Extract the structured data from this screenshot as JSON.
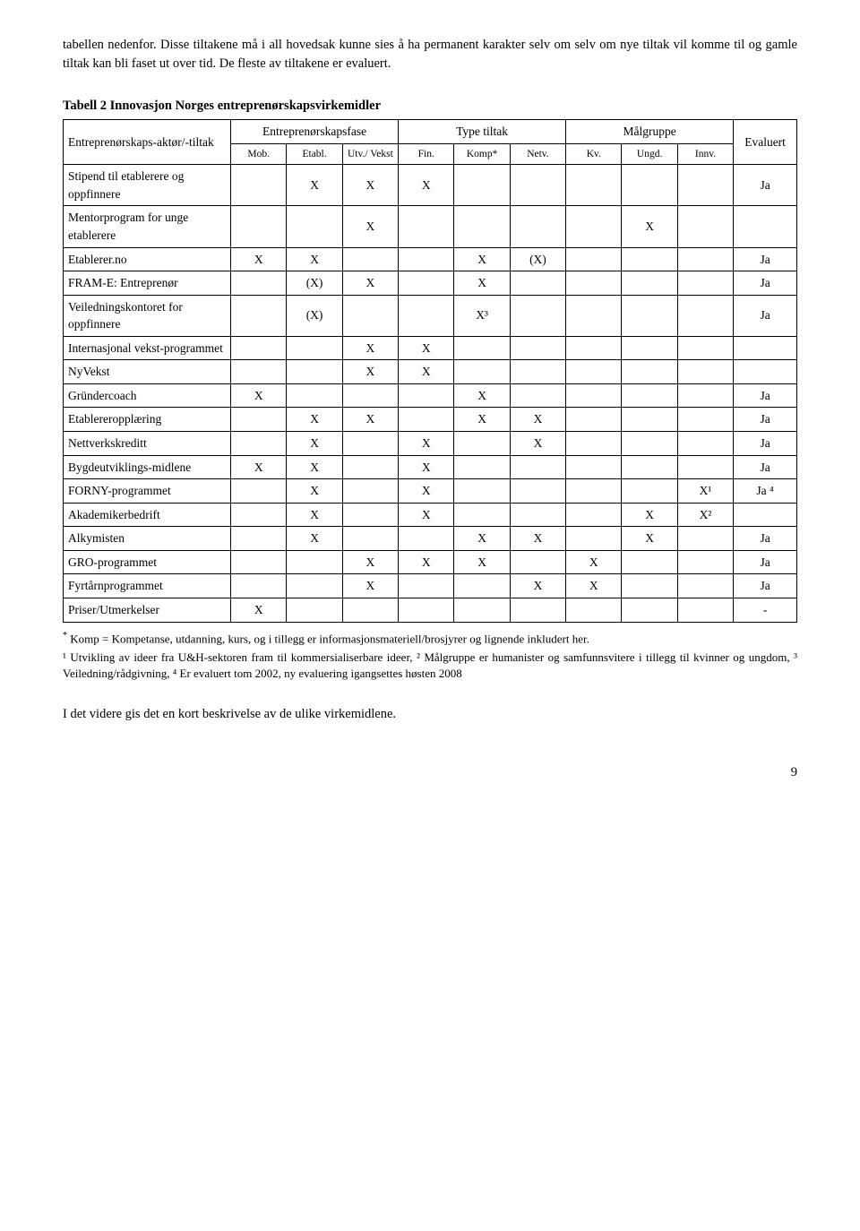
{
  "intro": "tabellen nedenfor. Disse tiltakene må i all hovedsak kunne sies å ha permanent karakter selv om selv om nye tiltak vil komme til og gamle tiltak kan bli faset ut over tid. De fleste av tiltakene er evaluert.",
  "table_title": "Tabell 2 Innovasjon Norges entreprenørskapsvirkemidler",
  "headers": {
    "main_row_label": "Entreprenørskaps-aktør/-tiltak",
    "phase": "Entreprenørskapsfase",
    "type": "Type tiltak",
    "target": "Målgruppe",
    "eval": "Evaluert",
    "sub": {
      "mob": "Mob.",
      "etabl": "Etabl.",
      "utv": "Utv./ Vekst",
      "fin": "Fin.",
      "komp": "Komp*",
      "netv": "Netv.",
      "kv": "Kv.",
      "ungd": "Ungd.",
      "innv": "Innv."
    }
  },
  "rows": [
    {
      "label": "Stipend til etablerere og oppfinnere",
      "mob": "",
      "etabl": "X",
      "utv": "X",
      "fin": "X",
      "komp": "",
      "netv": "",
      "kv": "",
      "ungd": "",
      "innv": "",
      "eval": "Ja"
    },
    {
      "label": "Mentorprogram for unge etablerere",
      "mob": "",
      "etabl": "",
      "utv": "X",
      "fin": "",
      "komp": "",
      "netv": "",
      "kv": "",
      "ungd": "X",
      "innv": "",
      "eval": ""
    },
    {
      "label": "Etablerer.no",
      "mob": "X",
      "etabl": "X",
      "utv": "",
      "fin": "",
      "komp": "X",
      "netv": "(X)",
      "kv": "",
      "ungd": "",
      "innv": "",
      "eval": "Ja"
    },
    {
      "label": "FRAM-E: Entreprenør",
      "mob": "",
      "etabl": "(X)",
      "utv": "X",
      "fin": "",
      "komp": "X",
      "netv": "",
      "kv": "",
      "ungd": "",
      "innv": "",
      "eval": "Ja"
    },
    {
      "label": "Veiledningskontoret for oppfinnere",
      "mob": "",
      "etabl": "(X)",
      "utv": "",
      "fin": "",
      "komp": "X³",
      "netv": "",
      "kv": "",
      "ungd": "",
      "innv": "",
      "eval": "Ja"
    },
    {
      "label": "Internasjonal vekst-programmet",
      "mob": "",
      "etabl": "",
      "utv": "X",
      "fin": "X",
      "komp": "",
      "netv": "",
      "kv": "",
      "ungd": "",
      "innv": "",
      "eval": ""
    },
    {
      "label": "NyVekst",
      "mob": "",
      "etabl": "",
      "utv": "X",
      "fin": "X",
      "komp": "",
      "netv": "",
      "kv": "",
      "ungd": "",
      "innv": "",
      "eval": ""
    },
    {
      "label": "Gründercoach",
      "mob": "X",
      "etabl": "",
      "utv": "",
      "fin": "",
      "komp": "X",
      "netv": "",
      "kv": "",
      "ungd": "",
      "innv": "",
      "eval": "Ja"
    },
    {
      "label": "Etablereropplæring",
      "mob": "",
      "etabl": "X",
      "utv": "X",
      "fin": "",
      "komp": "X",
      "netv": "X",
      "kv": "",
      "ungd": "",
      "innv": "",
      "eval": "Ja"
    },
    {
      "label": "Nettverkskreditt",
      "mob": "",
      "etabl": "X",
      "utv": "",
      "fin": "X",
      "komp": "",
      "netv": "X",
      "kv": "",
      "ungd": "",
      "innv": "",
      "eval": "Ja"
    },
    {
      "label": "Bygdeutviklings-midlene",
      "mob": "X",
      "etabl": "X",
      "utv": "",
      "fin": "X",
      "komp": "",
      "netv": "",
      "kv": "",
      "ungd": "",
      "innv": "",
      "eval": "Ja"
    },
    {
      "label": "FORNY-programmet",
      "mob": "",
      "etabl": "X",
      "utv": "",
      "fin": "X",
      "komp": "",
      "netv": "",
      "kv": "",
      "ungd": "",
      "innv": "X¹",
      "eval": "Ja ⁴"
    },
    {
      "label": "Akademikerbedrift",
      "mob": "",
      "etabl": "X",
      "utv": "",
      "fin": "X",
      "komp": "",
      "netv": "",
      "kv": "",
      "ungd": "X",
      "innv": "X²",
      "eval": ""
    },
    {
      "label": "Alkymisten",
      "mob": "",
      "etabl": "X",
      "utv": "",
      "fin": "",
      "komp": "X",
      "netv": "X",
      "kv": "",
      "ungd": "X",
      "innv": "",
      "eval": "Ja"
    },
    {
      "label": "GRO-programmet",
      "mob": "",
      "etabl": "",
      "utv": "X",
      "fin": "X",
      "komp": "X",
      "netv": "",
      "kv": "X",
      "ungd": "",
      "innv": "",
      "eval": "Ja"
    },
    {
      "label": "Fyrtårnprogrammet",
      "mob": "",
      "etabl": "",
      "utv": "X",
      "fin": "",
      "komp": "",
      "netv": "X",
      "kv": "X",
      "ungd": "",
      "innv": "",
      "eval": "Ja"
    },
    {
      "label": "Priser/Utmerkelser",
      "mob": "X",
      "etabl": "",
      "utv": "",
      "fin": "",
      "komp": "",
      "netv": "",
      "kv": "",
      "ungd": "",
      "innv": "",
      "eval": "-"
    }
  ],
  "footnote1_prefix": "*",
  "footnote1": " Komp = Kompetanse, utdanning, kurs, og i tillegg er informasjonsmateriell/brosjyrer og lignende inkludert her.",
  "footnote2": "¹ Utvikling av ideer fra U&H-sektoren fram til kommersialiserbare ideer, ² Målgruppe er humanister og samfunnsvitere i tillegg til kvinner og ungdom, ³ Veiledning/rådgivning, ⁴ Er evaluert tom 2002, ny evaluering igangsettes høsten 2008",
  "closing": "I det videre gis det en kort beskrivelse av de ulike virkemidlene.",
  "page_number": "9"
}
